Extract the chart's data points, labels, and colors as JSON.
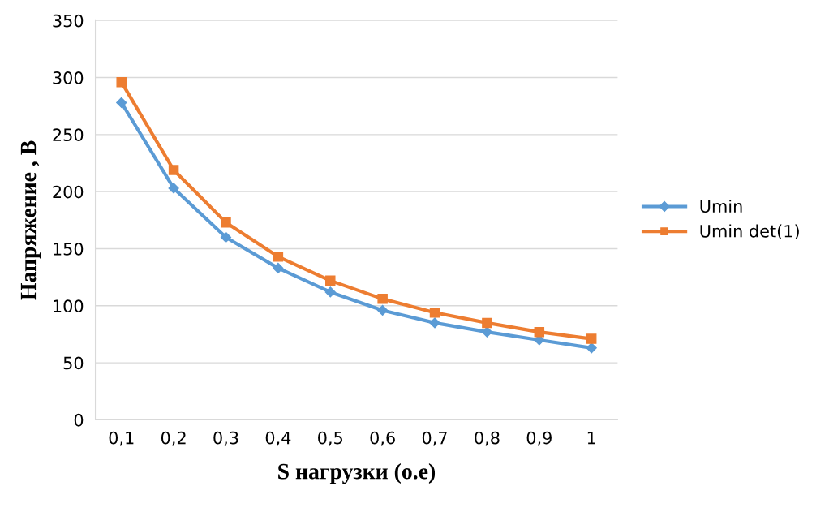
{
  "chart_data": {
    "type": "line",
    "xlabel": "S нагрузки (о.е)",
    "ylabel": "Напряжение , В",
    "categories": [
      "0,1",
      "0,2",
      "0,3",
      "0,4",
      "0,5",
      "0,6",
      "0,7",
      "0,8",
      "0,9",
      "1"
    ],
    "series": [
      {
        "name": "Umin",
        "color": "#5b9bd5",
        "marker": "diamond",
        "values": [
          278,
          203,
          160,
          133,
          112,
          96,
          85,
          77,
          70,
          63
        ]
      },
      {
        "name": "Umin det(1)",
        "color": "#ed7d31",
        "marker": "square",
        "values": [
          296,
          219,
          173,
          143,
          122,
          106,
          94,
          85,
          77,
          71
        ]
      }
    ],
    "ylim": [
      0,
      350
    ],
    "yticks": [
      0,
      50,
      100,
      150,
      200,
      250,
      300,
      350
    ],
    "grid": "y",
    "legend": "right",
    "line_style": "solid"
  }
}
